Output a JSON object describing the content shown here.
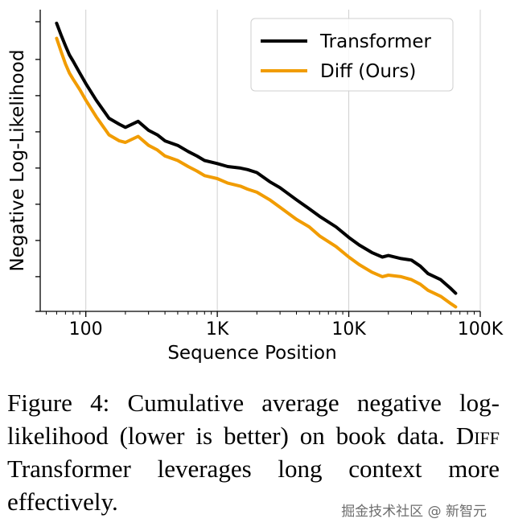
{
  "chart_data": {
    "type": "line",
    "title": "",
    "xlabel": "Sequence Position",
    "ylabel": "Negative Log-Likelihood",
    "xscale": "log",
    "xlim": [
      45,
      100000
    ],
    "ylim": [
      0,
      100
    ],
    "x_ticks": [
      100,
      1000,
      10000,
      100000
    ],
    "x_tick_labels": [
      "100",
      "1K",
      "10K",
      "100K"
    ],
    "y_ticks": [
      0,
      11.5,
      23.5,
      35.5,
      47.5,
      59.5,
      71.5,
      83.5,
      96
    ],
    "y_tick_labels": [
      "",
      "",
      "",
      "",
      "",
      "",
      "",
      "",
      ""
    ],
    "grid": "x-major",
    "legend_position": "top-right",
    "series": [
      {
        "name": "Transformer",
        "color": "#000000",
        "x": [
          60,
          65,
          70,
          75,
          80,
          90,
          100,
          120,
          150,
          180,
          200,
          250,
          300,
          350,
          400,
          500,
          600,
          700,
          800,
          1000,
          1200,
          1500,
          1700,
          2000,
          2500,
          3000,
          4000,
          5000,
          6000,
          8000,
          10000,
          12000,
          15000,
          18000,
          20000,
          25000,
          30000,
          35000,
          40000,
          50000,
          60000,
          65000
        ],
        "values": [
          95.5,
          91.5,
          88,
          85,
          83,
          79,
          75.5,
          70,
          64,
          62,
          61,
          63,
          60,
          58.5,
          56.5,
          55,
          53,
          51.5,
          50,
          49,
          48,
          47.5,
          47,
          46,
          43,
          41,
          37,
          34,
          31.5,
          28,
          24.5,
          22,
          19.5,
          18,
          18.5,
          17.5,
          17,
          15,
          12.5,
          10.5,
          7.5,
          6
        ]
      },
      {
        "name": "Diff (Ours)",
        "color": "#f19c00",
        "x": [
          60,
          65,
          70,
          75,
          80,
          90,
          100,
          120,
          150,
          180,
          200,
          250,
          300,
          350,
          400,
          500,
          600,
          700,
          800,
          1000,
          1200,
          1500,
          1700,
          2000,
          2500,
          3000,
          4000,
          5000,
          6000,
          8000,
          10000,
          12000,
          15000,
          18000,
          20000,
          25000,
          30000,
          35000,
          40000,
          50000,
          60000,
          65000
        ],
        "values": [
          90.5,
          86,
          82,
          79,
          77,
          73.5,
          70,
          64.5,
          58.5,
          56.5,
          56,
          58,
          55,
          53.5,
          51.5,
          50,
          48,
          46.5,
          45,
          44,
          42.5,
          41.5,
          40.5,
          39.5,
          37,
          34.5,
          30.5,
          28,
          25,
          21.5,
          18,
          15.5,
          13,
          11.5,
          12,
          11.5,
          10.5,
          9,
          7,
          5,
          2.5,
          1.5
        ]
      }
    ]
  },
  "caption": {
    "prefix": "Figure 4: Cumulative average negative log-likelihood (lower is better) on book data. ",
    "smallcaps": "Diff",
    "suffix": " Transformer leverages long context more effectively."
  },
  "watermark": "掘金技术社区 @ 新智元"
}
